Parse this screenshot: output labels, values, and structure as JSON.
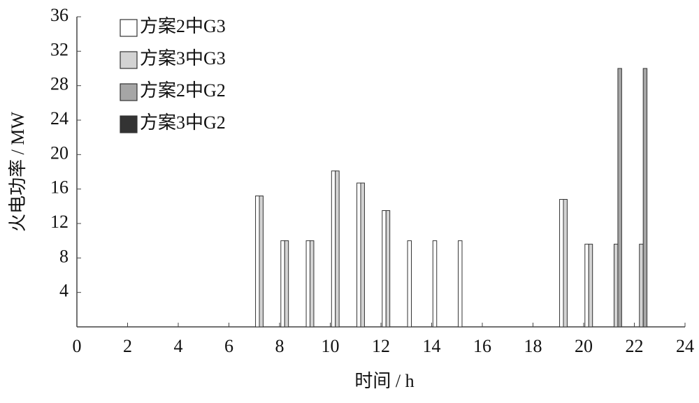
{
  "chart_data": {
    "type": "bar",
    "x_label": "时间 / h",
    "y_label": "火电功率 / MW",
    "x": [
      0,
      1,
      2,
      3,
      4,
      5,
      6,
      7,
      8,
      9,
      10,
      11,
      12,
      13,
      14,
      15,
      16,
      17,
      18,
      19,
      20,
      21,
      22,
      23
    ],
    "series": [
      {
        "name": "方案2中G3",
        "color": "#ffffff",
        "values": [
          0,
          0,
          0,
          0,
          0,
          0,
          0,
          15.2,
          10,
          10,
          18.1,
          16.7,
          13.5,
          10,
          10,
          10,
          0,
          0,
          0,
          14.8,
          9.6,
          0,
          0,
          0
        ]
      },
      {
        "name": "方案3中G3",
        "color": "#d3d3d3",
        "values": [
          0,
          0,
          0,
          0,
          0,
          0,
          0,
          15.2,
          10,
          10,
          18.1,
          16.7,
          13.5,
          0,
          0,
          0,
          0,
          0,
          0,
          14.8,
          9.6,
          9.6,
          9.6,
          0
        ]
      },
      {
        "name": "方案2中G2",
        "color": "#a6a6a6",
        "values": [
          0,
          0,
          0,
          0,
          0,
          0,
          0,
          0,
          0,
          0,
          0,
          0,
          0,
          0,
          0,
          0,
          0,
          0,
          0,
          0,
          0,
          30,
          30,
          0
        ]
      },
      {
        "name": "方案3中G2",
        "color": "#333333",
        "values": [
          0,
          0,
          0,
          0,
          0,
          0,
          0,
          0,
          0,
          0,
          0,
          0,
          0,
          0,
          0,
          0,
          0,
          0,
          0,
          0,
          0,
          0,
          0,
          0
        ]
      }
    ],
    "xlim": [
      0,
      24
    ],
    "xticks": [
      0,
      2,
      4,
      6,
      8,
      10,
      12,
      14,
      16,
      18,
      20,
      22,
      24
    ],
    "ylim": [
      0,
      36
    ],
    "yticks": [
      4,
      8,
      12,
      16,
      20,
      24,
      28,
      32,
      36
    ],
    "legend": "top-left"
  }
}
